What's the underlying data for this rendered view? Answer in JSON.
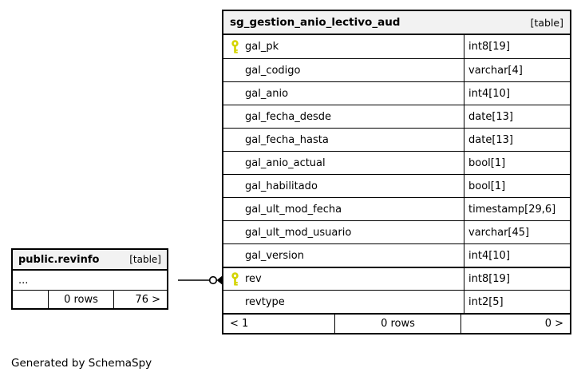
{
  "diagram": {
    "credit": "Generated by SchemaSpy"
  },
  "main_table": {
    "name": "sg_gestion_anio_lectivo_aud",
    "badge": "[table]",
    "columns": [
      {
        "name": "gal_pk",
        "type": "int8[19]",
        "key": true,
        "icon": "primary-key-icon"
      },
      {
        "name": "gal_codigo",
        "type": "varchar[4]",
        "key": false
      },
      {
        "name": "gal_anio",
        "type": "int4[10]",
        "key": false
      },
      {
        "name": "gal_fecha_desde",
        "type": "date[13]",
        "key": false
      },
      {
        "name": "gal_fecha_hasta",
        "type": "date[13]",
        "key": false
      },
      {
        "name": "gal_anio_actual",
        "type": "bool[1]",
        "key": false
      },
      {
        "name": "gal_habilitado",
        "type": "bool[1]",
        "key": false
      },
      {
        "name": "gal_ult_mod_fecha",
        "type": "timestamp[29,6]",
        "key": false
      },
      {
        "name": "gal_ult_mod_usuario",
        "type": "varchar[45]",
        "key": false
      },
      {
        "name": "gal_version",
        "type": "int4[10]",
        "key": false
      },
      {
        "name": "rev",
        "type": "int8[19]",
        "key": true,
        "icon": "primary-key-icon",
        "section_divider": true
      },
      {
        "name": "revtype",
        "type": "int2[5]",
        "key": false
      }
    ],
    "footer": {
      "left": "< 1",
      "center": "0 rows",
      "right": "0 >"
    }
  },
  "ref_table": {
    "name": "public.revinfo",
    "badge": "[table]",
    "rows": [
      "..."
    ],
    "footer": {
      "left": "",
      "center": "0 rows",
      "right": "76 >"
    }
  },
  "colors": {
    "key_icon": "#d4d400",
    "header_bg": "#f2f2f2",
    "border": "#000000",
    "background": "#ffffff"
  }
}
